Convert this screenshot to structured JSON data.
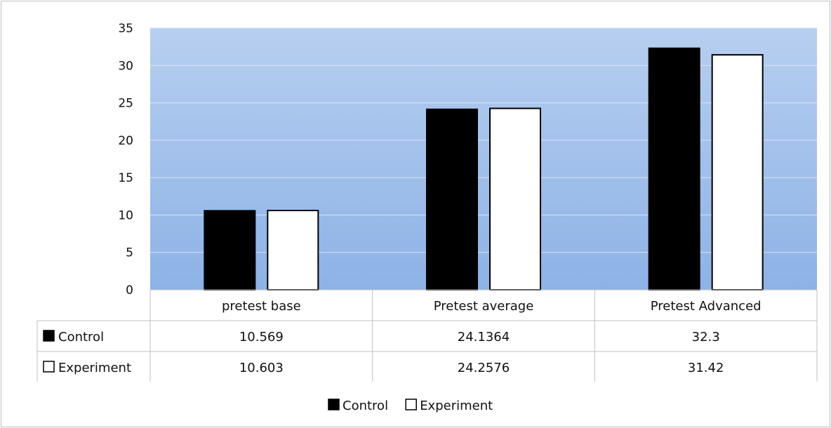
{
  "chart_data": {
    "type": "bar",
    "categories": [
      "pretest base",
      "Pretest average",
      "Pretest Advanced"
    ],
    "series": [
      {
        "name": "Control",
        "values": [
          10.569,
          24.1364,
          32.3
        ],
        "color": "#000000"
      },
      {
        "name": "Experiment",
        "values": [
          10.603,
          24.2576,
          31.42
        ],
        "color": "#ffffff"
      }
    ],
    "table_values": [
      [
        "10.569",
        "24.1364",
        "32.3"
      ],
      [
        "10.603",
        "24.2576",
        "31.42"
      ]
    ],
    "ylim": [
      0,
      35
    ],
    "yticks": [
      0,
      5,
      10,
      15,
      20,
      25,
      30,
      35
    ],
    "grid": true,
    "legend": "bottom-center",
    "plot_background": [
      "#b7cff0",
      "#8db2e6"
    ],
    "data_table": true
  }
}
